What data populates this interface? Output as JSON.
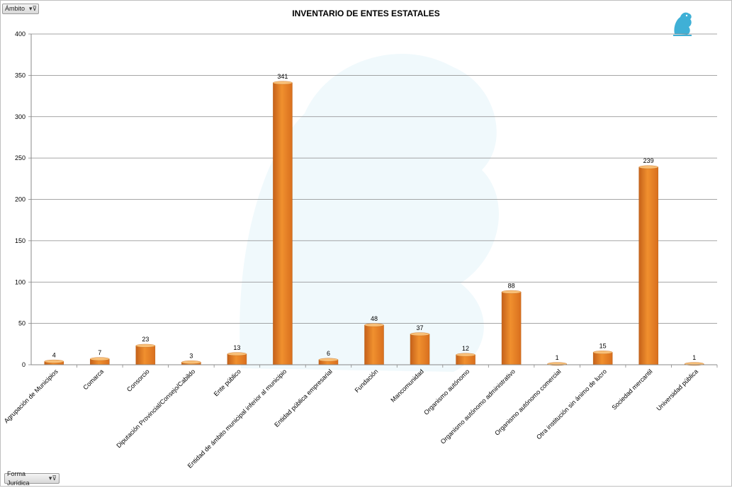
{
  "filters": {
    "top_label": "Ámbito",
    "bottom_label": "Forma Jurídica",
    "filter_icon": "filter-icon"
  },
  "logo_icon": "griffin-emblem-icon",
  "chart_data": {
    "type": "bar",
    "title": "INVENTARIO DE ENTES ESTATALES",
    "xlabel": "",
    "ylabel": "",
    "ylim": [
      0,
      400
    ],
    "yticks": [
      0,
      50,
      100,
      150,
      200,
      250,
      300,
      350,
      400
    ],
    "grid": true,
    "bar_color": "#f0902e",
    "categories": [
      "Agrupación de Municipios",
      "Comarca",
      "Consorcio",
      "Diputación Provincial/Consejo/Cabildo",
      "Ente público",
      "Entidad de ámbito municipal inferior al municipio",
      "Entidad pública empresarial",
      "Fundación",
      "Mancomunidad",
      "Organismo autónomo",
      "Organismo autónomo administrativo",
      "Organismo autónomo comercial",
      "Otra institución sin ánimo de lucro",
      "Sociedad mercantil",
      "Universidad pública"
    ],
    "values": [
      4,
      7,
      23,
      3,
      13,
      341,
      6,
      48,
      37,
      12,
      88,
      1,
      15,
      239,
      1
    ]
  }
}
